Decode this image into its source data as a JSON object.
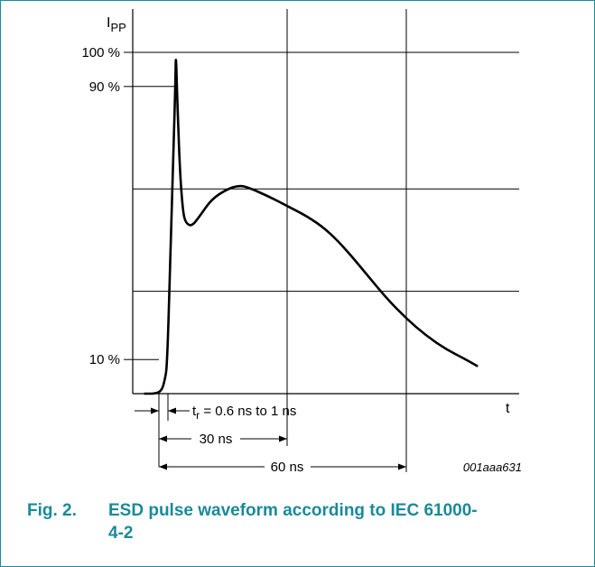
{
  "figure": {
    "number": "Fig. 2.",
    "caption": "ESD pulse waveform according to IEC 61000-4-2",
    "code": "001aaa631",
    "border_color": "#1a8a9a"
  },
  "chart_data": {
    "type": "line",
    "ylabel_main": "I",
    "ylabel_sub": "PP",
    "xlabel": "t",
    "y_ticks": [
      {
        "value": 100,
        "label": "100 %"
      },
      {
        "value": 90,
        "label": "90 %"
      },
      {
        "value": 10,
        "label": "10 %"
      }
    ],
    "grid_y": [
      100,
      60,
      30
    ],
    "grid_x_ns": [
      30,
      60
    ],
    "x_range_ns": [
      0,
      78
    ],
    "y_range_pct": [
      -2,
      106
    ],
    "annotations": {
      "rise_time_prefix": "t",
      "rise_time_sub": "r",
      "rise_time_text": "= 0.6 ns to 1 ns",
      "at_30": "30 ns",
      "at_60": "60 ns"
    },
    "series": [
      {
        "points_ns_pct": [
          [
            -6,
            0
          ],
          [
            -3,
            0
          ],
          [
            -1.5,
            1
          ],
          [
            -0.8,
            4
          ],
          [
            -0.2,
            8
          ],
          [
            0.6,
            40
          ],
          [
            1.5,
            75
          ],
          [
            1.9,
            93
          ],
          [
            2.0,
            100
          ],
          [
            2.3,
            88
          ],
          [
            3.0,
            65
          ],
          [
            3.8,
            53
          ],
          [
            4.5,
            50
          ],
          [
            6.0,
            49
          ],
          [
            8.0,
            52
          ],
          [
            11,
            57
          ],
          [
            15,
            60
          ],
          [
            18,
            61
          ],
          [
            20,
            60.5
          ],
          [
            25,
            58
          ],
          [
            30,
            55
          ],
          [
            35,
            52
          ],
          [
            40,
            48
          ],
          [
            45,
            42
          ],
          [
            50,
            35
          ],
          [
            55,
            28
          ],
          [
            60,
            22
          ],
          [
            65,
            17
          ],
          [
            70,
            13
          ],
          [
            75,
            10
          ],
          [
            78,
            8
          ]
        ]
      }
    ]
  }
}
